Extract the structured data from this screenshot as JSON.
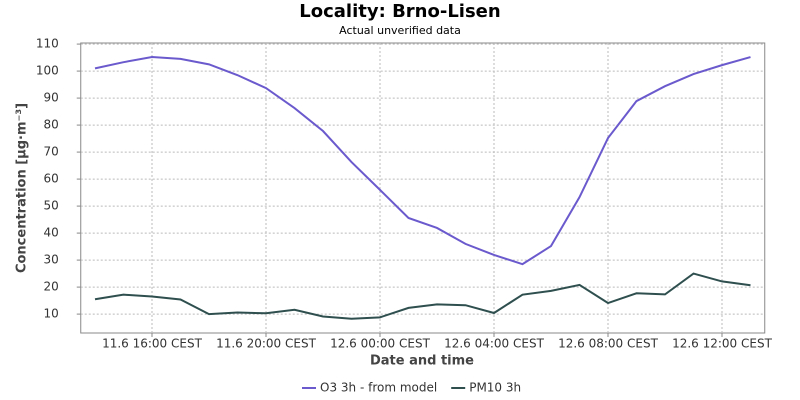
{
  "chart_data": {
    "type": "line",
    "title": "Locality: Brno-Lisen",
    "subtitle": "Actual unverified data",
    "y_label": "Concentration [µg·m⁻³]",
    "x_label": "Date and time",
    "categories": [
      null,
      null,
      "11.6 16:00 CEST",
      null,
      null,
      null,
      "11.6 20:00 CEST",
      null,
      null,
      null,
      "12.6 00:00 CEST",
      null,
      null,
      null,
      "12.6 04:00 CEST",
      null,
      null,
      null,
      "12.6 08:00 CEST",
      null,
      null,
      null,
      "12.6 12:00 CEST",
      null
    ],
    "series": [
      {
        "name": "O3 3h - from model",
        "color": "#6a5acd",
        "values": [
          101,
          103.3,
          105.2,
          104.5,
          102.5,
          98.5,
          93.7,
          86.3,
          77.8,
          66.3,
          56,
          45.6,
          41.9,
          36,
          31.9,
          28.5,
          35.2,
          53.3,
          75.2,
          88.9,
          94.4,
          98.9,
          102.2,
          105.2
        ]
      },
      {
        "name": "PM10 3h",
        "color": "#2f4f4f",
        "values": [
          15.5,
          17.2,
          16.5,
          15.4,
          10,
          10.6,
          10.3,
          11.6,
          9.1,
          8.3,
          8.8,
          12.3,
          13.6,
          13.3,
          10.4,
          17.2,
          18.6,
          20.8,
          14.1,
          17.7,
          17.3,
          25,
          22.1,
          20.7
        ]
      }
    ],
    "ylim": [
      3,
      110.4
    ],
    "yticks": [
      10,
      20,
      30,
      40,
      50,
      60,
      70,
      80,
      90,
      100,
      110
    ],
    "grid": true,
    "legend": "bottom"
  }
}
